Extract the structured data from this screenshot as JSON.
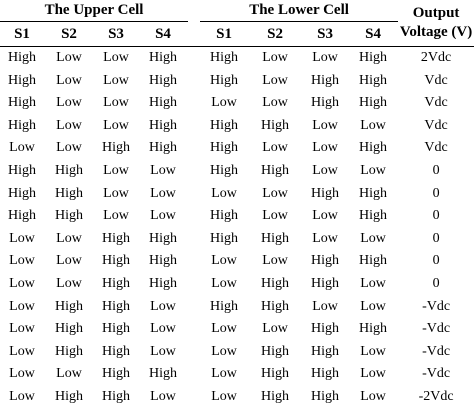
{
  "table": {
    "group_headers": {
      "upper": "The Upper Cell",
      "lower": "The Lower Cell",
      "output_line1": "Output",
      "output_line2": "Voltage (V)"
    },
    "sub_headers": [
      "S1",
      "S2",
      "S3",
      "S4",
      "S1",
      "S2",
      "S3",
      "S4"
    ],
    "rows": [
      [
        "High",
        "Low",
        "Low",
        "High",
        "High",
        "Low",
        "Low",
        "High",
        "2Vdc"
      ],
      [
        "High",
        "Low",
        "Low",
        "High",
        "High",
        "Low",
        "High",
        "High",
        "Vdc"
      ],
      [
        "High",
        "Low",
        "Low",
        "High",
        "Low",
        "Low",
        "High",
        "High",
        "Vdc"
      ],
      [
        "High",
        "Low",
        "Low",
        "High",
        "High",
        "High",
        "Low",
        "Low",
        "Vdc"
      ],
      [
        "Low",
        "Low",
        "High",
        "High",
        "High",
        "Low",
        "Low",
        "High",
        "Vdc"
      ],
      [
        "High",
        "High",
        "Low",
        "Low",
        "High",
        "High",
        "Low",
        "Low",
        "0"
      ],
      [
        "High",
        "High",
        "Low",
        "Low",
        "Low",
        "Low",
        "High",
        "High",
        "0"
      ],
      [
        "High",
        "High",
        "Low",
        "Low",
        "High",
        "Low",
        "Low",
        "High",
        "0"
      ],
      [
        "Low",
        "Low",
        "High",
        "High",
        "High",
        "High",
        "Low",
        "Low",
        "0"
      ],
      [
        "Low",
        "Low",
        "High",
        "High",
        "Low",
        "Low",
        "High",
        "High",
        "0"
      ],
      [
        "Low",
        "Low",
        "High",
        "High",
        "Low",
        "High",
        "High",
        "Low",
        "0"
      ],
      [
        "Low",
        "High",
        "High",
        "Low",
        "High",
        "High",
        "Low",
        "Low",
        "-Vdc"
      ],
      [
        "Low",
        "High",
        "High",
        "Low",
        "Low",
        "Low",
        "High",
        "High",
        "-Vdc"
      ],
      [
        "Low",
        "High",
        "High",
        "Low",
        "Low",
        "High",
        "High",
        "Low",
        "-Vdc"
      ],
      [
        "Low",
        "Low",
        "High",
        "High",
        "Low",
        "High",
        "High",
        "Low",
        "-Vdc"
      ],
      [
        "Low",
        "High",
        "High",
        "Low",
        "Low",
        "High",
        "High",
        "Low",
        "-2Vdc"
      ]
    ]
  }
}
